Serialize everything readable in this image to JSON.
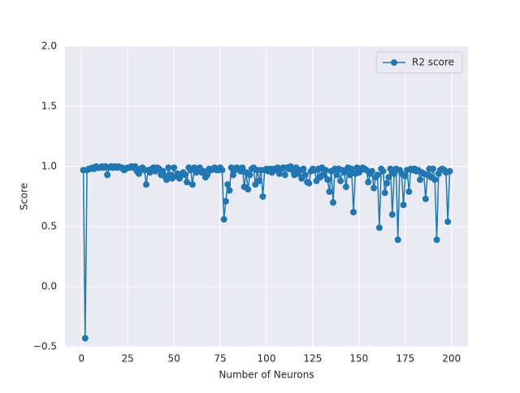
{
  "chart_data": {
    "type": "line",
    "xlabel": "Number of Neurons",
    "ylabel": "Score",
    "x": [
      1,
      2,
      3,
      4,
      5,
      6,
      7,
      8,
      9,
      10,
      11,
      12,
      13,
      14,
      15,
      16,
      17,
      18,
      19,
      20,
      21,
      22,
      23,
      24,
      25,
      26,
      27,
      28,
      29,
      30,
      31,
      32,
      33,
      34,
      35,
      36,
      37,
      38,
      39,
      40,
      41,
      42,
      43,
      44,
      45,
      46,
      47,
      48,
      49,
      50,
      51,
      52,
      53,
      54,
      55,
      56,
      57,
      58,
      59,
      60,
      61,
      62,
      63,
      64,
      65,
      66,
      67,
      68,
      69,
      70,
      71,
      72,
      73,
      74,
      75,
      76,
      77,
      78,
      79,
      80,
      81,
      82,
      83,
      84,
      85,
      86,
      87,
      88,
      89,
      90,
      91,
      92,
      93,
      94,
      95,
      96,
      97,
      98,
      99,
      100,
      101,
      102,
      103,
      104,
      105,
      106,
      107,
      108,
      109,
      110,
      111,
      112,
      113,
      114,
      115,
      116,
      117,
      118,
      119,
      120,
      121,
      122,
      123,
      124,
      125,
      126,
      127,
      128,
      129,
      130,
      131,
      132,
      133,
      134,
      135,
      136,
      137,
      138,
      139,
      140,
      141,
      142,
      143,
      144,
      145,
      146,
      147,
      148,
      149,
      150,
      151,
      152,
      153,
      154,
      155,
      156,
      157,
      158,
      159,
      160,
      161,
      162,
      163,
      164,
      165,
      166,
      167,
      168,
      169,
      170,
      171,
      172,
      173,
      174,
      175,
      176,
      177,
      178,
      179,
      180,
      181,
      182,
      183,
      184,
      185,
      186,
      187,
      188,
      189,
      190,
      191,
      192,
      193,
      194,
      195,
      196,
      197,
      198,
      199
    ],
    "series": [
      {
        "name": "R2 score",
        "color": "#1f77b4",
        "values": [
          0.97,
          -0.43,
          0.97,
          0.98,
          0.98,
          0.99,
          0.98,
          1.0,
          0.99,
          0.99,
          1.0,
          0.99,
          1.0,
          0.93,
          0.99,
          1.0,
          0.99,
          1.0,
          0.99,
          1.0,
          0.99,
          0.99,
          0.97,
          0.98,
          0.99,
          0.99,
          1.0,
          0.99,
          1.0,
          0.96,
          0.94,
          0.98,
          0.99,
          0.97,
          0.85,
          0.97,
          0.95,
          0.98,
          0.99,
          0.96,
          0.99,
          0.98,
          0.93,
          0.96,
          0.92,
          0.89,
          0.99,
          0.93,
          0.9,
          0.99,
          0.92,
          0.94,
          0.9,
          0.93,
          0.95,
          0.93,
          0.87,
          0.99,
          0.97,
          0.85,
          0.99,
          0.95,
          0.98,
          0.99,
          0.95,
          0.96,
          0.91,
          0.93,
          0.98,
          0.97,
          0.98,
          0.99,
          0.97,
          0.97,
          0.99,
          0.97,
          0.56,
          0.71,
          0.85,
          0.8,
          0.99,
          0.93,
          0.97,
          0.99,
          0.98,
          0.96,
          0.99,
          0.83,
          0.95,
          0.81,
          0.93,
          0.98,
          0.99,
          0.85,
          0.97,
          0.88,
          0.97,
          0.75,
          0.97,
          0.98,
          0.96,
          0.98,
          0.95,
          0.98,
          0.97,
          0.99,
          0.94,
          0.98,
          0.99,
          0.93,
          0.99,
          0.98,
          1.0,
          0.97,
          0.93,
          0.99,
          0.94,
          0.97,
          0.9,
          0.98,
          0.93,
          0.87,
          0.86,
          0.96,
          0.98,
          0.97,
          0.88,
          0.98,
          0.91,
          0.99,
          0.93,
          0.97,
          0.89,
          0.79,
          0.96,
          0.7,
          0.98,
          0.93,
          0.98,
          0.88,
          0.97,
          0.95,
          0.83,
          0.99,
          0.93,
          0.98,
          0.62,
          0.94,
          0.99,
          0.95,
          0.97,
          0.99,
          0.98,
          0.97,
          0.87,
          0.94,
          0.96,
          0.82,
          0.91,
          0.93,
          0.49,
          0.98,
          0.96,
          0.78,
          0.86,
          0.91,
          0.98,
          0.6,
          0.94,
          0.98,
          0.39,
          0.97,
          0.94,
          0.68,
          0.92,
          0.97,
          0.79,
          0.98,
          0.97,
          0.98,
          0.96,
          0.97,
          0.89,
          0.95,
          0.94,
          0.73,
          0.93,
          0.98,
          0.91,
          0.98,
          0.89,
          0.39,
          0.94,
          0.97,
          0.98,
          0.97,
          0.95,
          0.54,
          0.96
        ]
      }
    ],
    "xlim": [
      -8.9,
      208.9
    ],
    "xticks": [
      0,
      25,
      50,
      75,
      100,
      125,
      150,
      175,
      200
    ],
    "ylim": [
      -0.5,
      2.0
    ],
    "yticks": [
      {
        "value": -0.5,
        "label": "−0.5"
      },
      {
        "value": 0,
        "label": "0.0"
      },
      {
        "value": 0.5,
        "label": "0.5"
      },
      {
        "value": 1,
        "label": "1.0"
      },
      {
        "value": 1.5,
        "label": "1.5"
      },
      {
        "value": 2,
        "label": "2.0"
      }
    ],
    "grid": true,
    "legend": "upper right"
  }
}
